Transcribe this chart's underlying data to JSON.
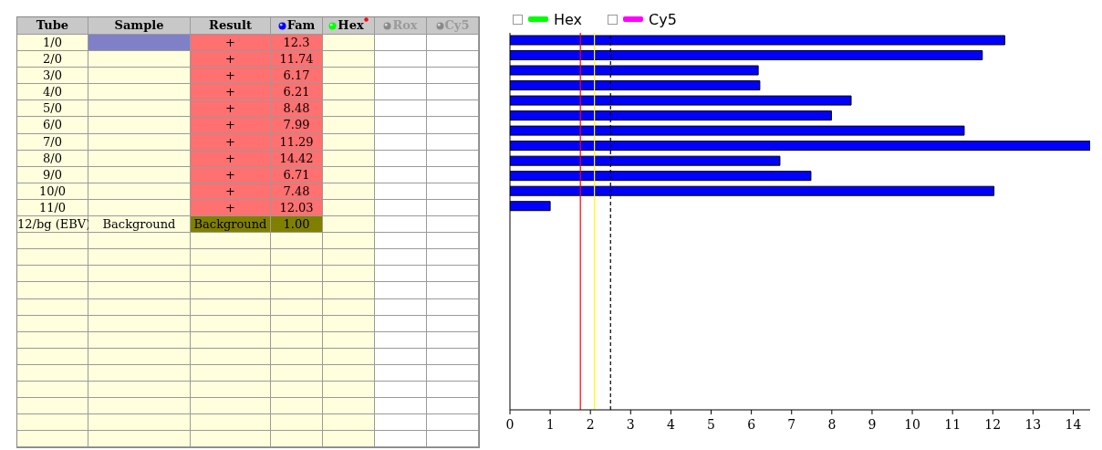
{
  "chart_data": {
    "type": "bar",
    "orientation": "horizontal",
    "categories": [
      null,
      null,
      null,
      null,
      null,
      null,
      null,
      null,
      null,
      null,
      null,
      null,
      null,
      null,
      null,
      null,
      null,
      null,
      null,
      null,
      null,
      null,
      null,
      null,
      null
    ],
    "series": [
      {
        "name": "Fam",
        "color": "#0000ff",
        "values": [
          12.3,
          11.74,
          6.17,
          6.21,
          8.48,
          7.99,
          11.29,
          14.42,
          6.71,
          7.48,
          12.03,
          1.0,
          null,
          null,
          null,
          null,
          null,
          null,
          null,
          null,
          null,
          null,
          null,
          null,
          null
        ]
      },
      {
        "name": "Hex",
        "color": "#00ff00",
        "values": [
          null,
          null,
          null,
          null,
          null,
          null,
          null,
          null,
          null,
          null,
          null,
          null,
          null,
          null,
          null,
          null,
          null,
          null,
          null,
          null,
          null,
          null,
          null,
          null,
          null
        ]
      },
      {
        "name": "Cy5",
        "color": "#ff00ff",
        "values": [
          null,
          null,
          null,
          null,
          null,
          null,
          null,
          null,
          null,
          null,
          null,
          null,
          null,
          null,
          null,
          null,
          null,
          null,
          null,
          null,
          null,
          null,
          null,
          null,
          null
        ]
      }
    ],
    "xlim": [
      0,
      14.42
    ],
    "xticks": [
      0,
      1,
      2,
      3,
      4,
      5,
      6,
      7,
      8,
      9,
      10,
      11,
      12,
      13,
      14
    ],
    "ref_lines": [
      {
        "axis": "x",
        "value": 1.75,
        "color": "#ff0000",
        "line_style": "solid"
      },
      {
        "axis": "x",
        "value": 2.1,
        "color": "#ffff00",
        "line_style": "solid"
      },
      {
        "axis": "x",
        "value": 2.5,
        "color": "#000000",
        "line_style": "dashed"
      }
    ],
    "annotations": [
      "Tube",
      "Sample",
      "Result",
      "Rox",
      "Cy5",
      "1/0",
      "2/0",
      "3/0",
      "4/0",
      "5/0",
      "6/0",
      "7/0",
      "8/0",
      "9/0",
      "10/0",
      "11/0",
      "12/bg (EBV)",
      "+",
      "+",
      "+",
      "+",
      "+",
      "+",
      "+",
      "+",
      "+",
      "+",
      "+",
      "Background",
      "Background",
      "12.3",
      "11.74",
      "6.17",
      "6.21",
      "8.48",
      "7.99",
      "11.29",
      "14.42",
      "6.71",
      "7.48",
      "12.03",
      "1.00"
    ],
    "legend": "top left",
    "grid": false
  }
}
